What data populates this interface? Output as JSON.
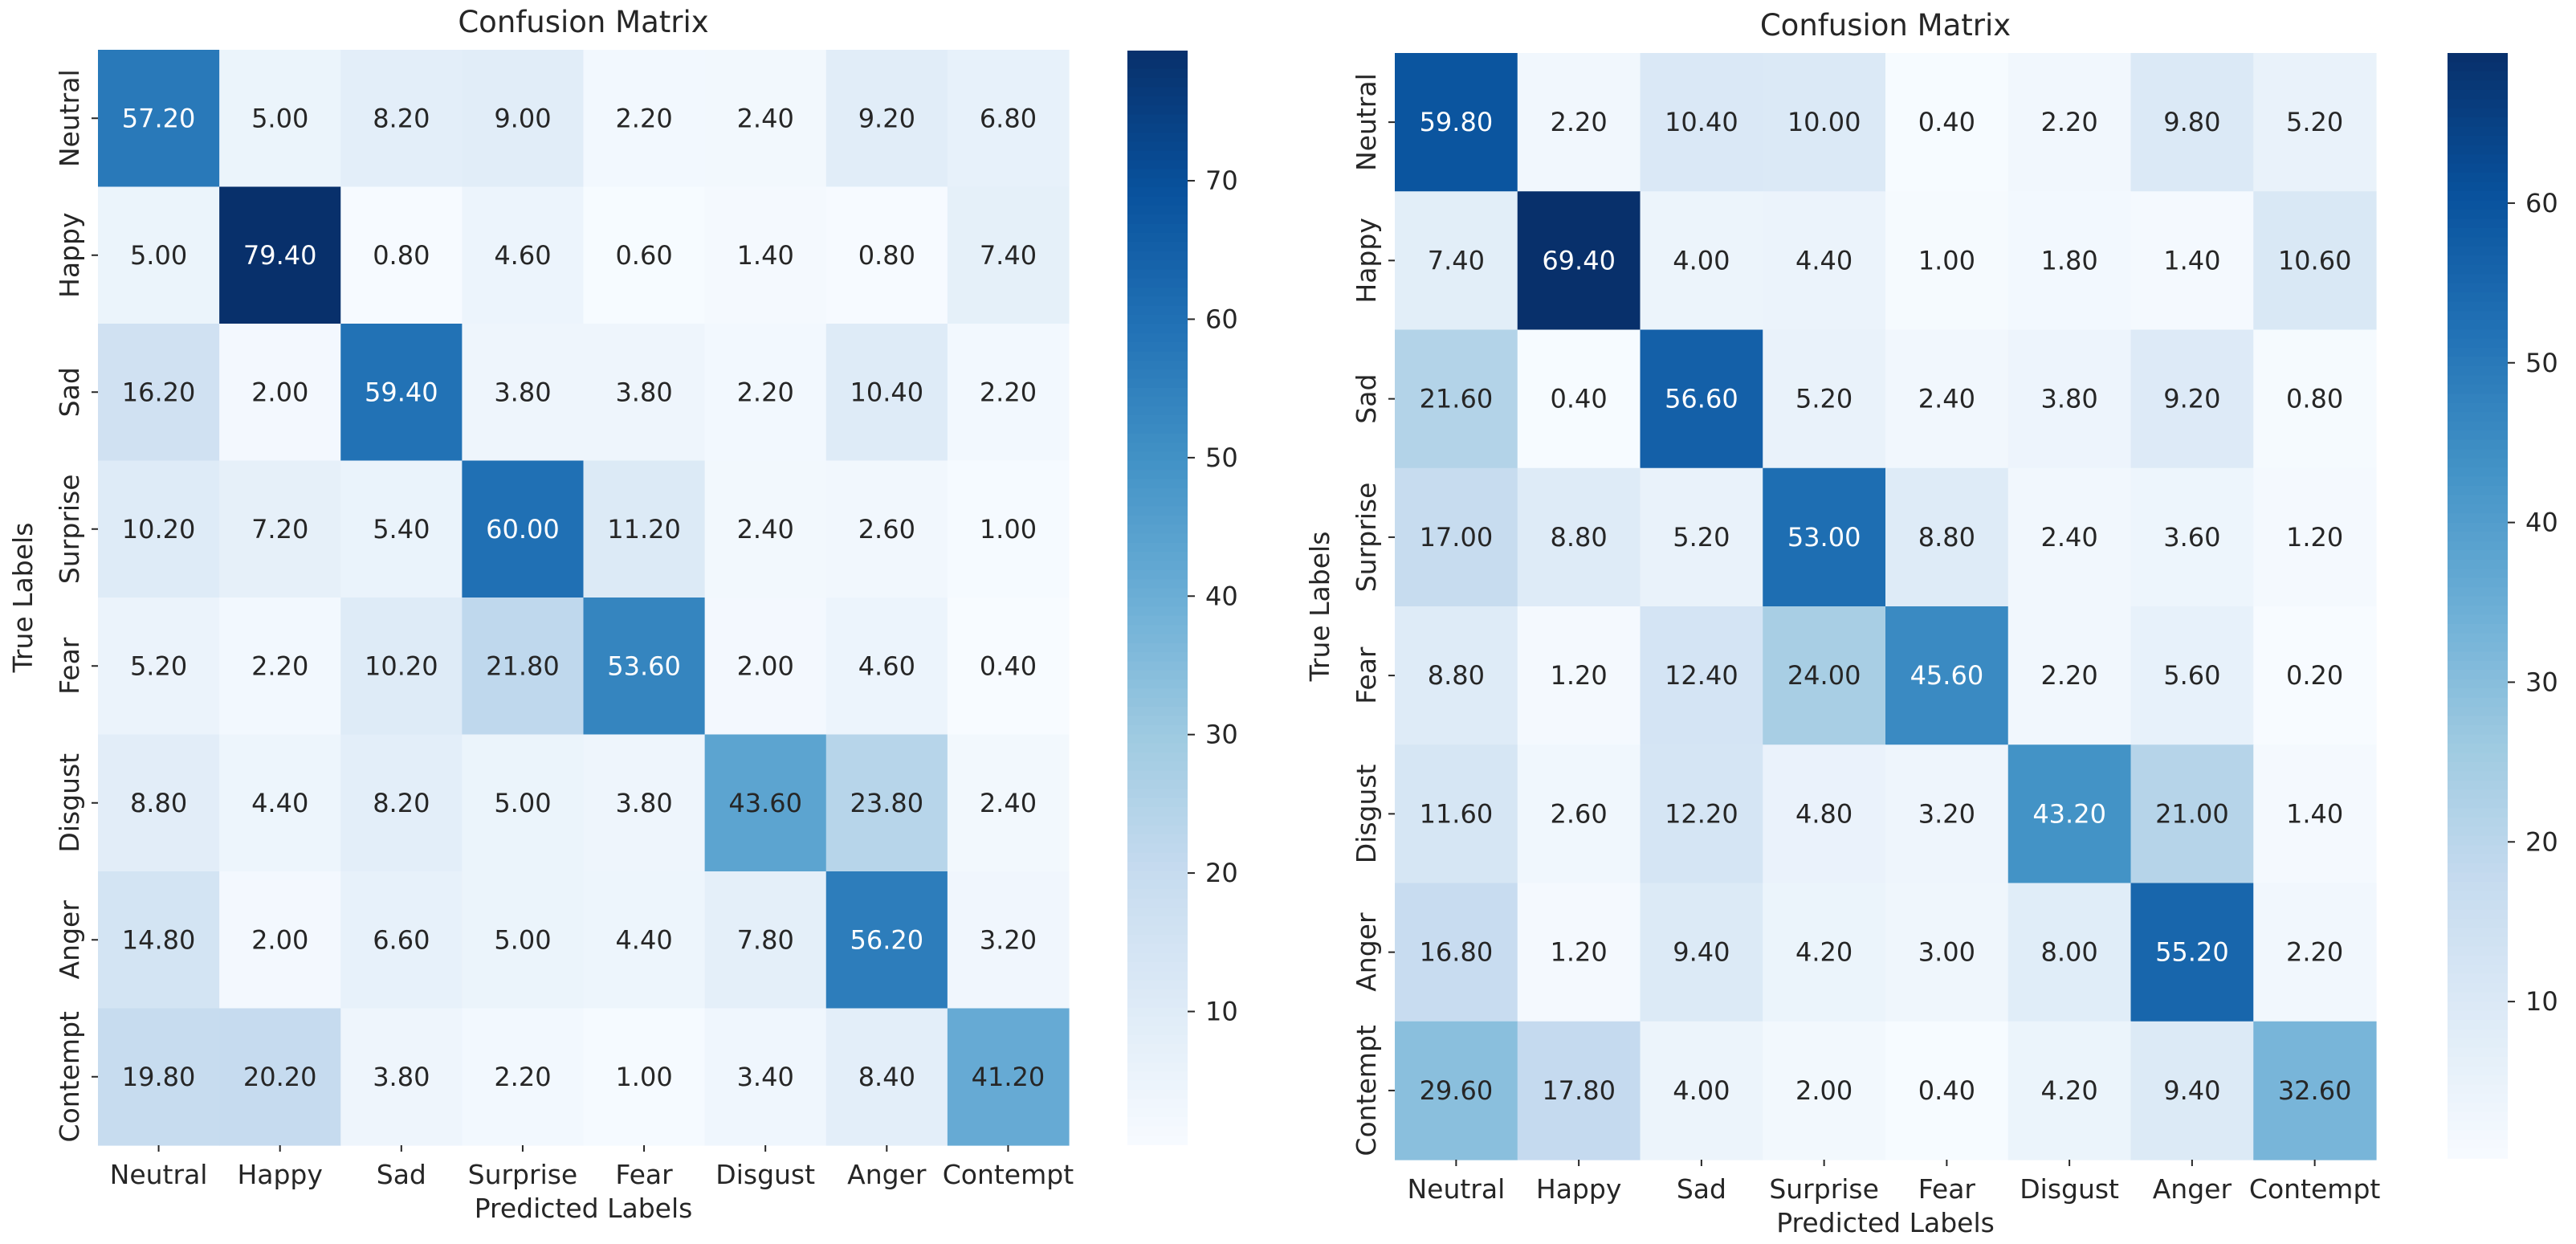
{
  "chart_data": [
    {
      "type": "heatmap",
      "title": "Confusion Matrix",
      "xlabel": "Predicted Labels",
      "ylabel": "True Labels",
      "x_categories": [
        "Neutral",
        "Happy",
        "Sad",
        "Surprise",
        "Fear",
        "Disgust",
        "Anger",
        "Contempt"
      ],
      "y_categories": [
        "Neutral",
        "Happy",
        "Sad",
        "Surprise",
        "Fear",
        "Disgust",
        "Anger",
        "Contempt"
      ],
      "values": [
        [
          "57.20",
          "5.00",
          "8.20",
          "9.00",
          "2.20",
          "2.40",
          "9.20",
          "6.80"
        ],
        [
          "5.00",
          "79.40",
          "0.80",
          "4.60",
          "0.60",
          "1.40",
          "0.80",
          "7.40"
        ],
        [
          "16.20",
          "2.00",
          "59.40",
          "3.80",
          "3.80",
          "2.20",
          "10.40",
          "2.20"
        ],
        [
          "10.20",
          "7.20",
          "5.40",
          "60.00",
          "11.20",
          "2.40",
          "2.60",
          "1.00"
        ],
        [
          "5.20",
          "2.20",
          "10.20",
          "21.80",
          "53.60",
          "2.00",
          "4.60",
          "0.40"
        ],
        [
          "8.80",
          "4.40",
          "8.20",
          "5.00",
          "3.80",
          "43.60",
          "23.80",
          "2.40"
        ],
        [
          "14.80",
          "2.00",
          "6.60",
          "5.00",
          "4.40",
          "7.80",
          "56.20",
          "3.20"
        ],
        [
          "19.80",
          "20.20",
          "3.80",
          "2.20",
          "1.00",
          "3.40",
          "8.40",
          "41.20"
        ]
      ],
      "colormap": "Blues",
      "color_range": [
        0.4,
        79.4
      ],
      "colorbar_ticks": [
        "10",
        "20",
        "30",
        "40",
        "50",
        "60",
        "70"
      ]
    },
    {
      "type": "heatmap",
      "title": "Confusion Matrix",
      "xlabel": "Predicted Labels",
      "ylabel": "True Labels",
      "x_categories": [
        "Neutral",
        "Happy",
        "Sad",
        "Surprise",
        "Fear",
        "Disgust",
        "Anger",
        "Contempt"
      ],
      "y_categories": [
        "Neutral",
        "Happy",
        "Sad",
        "Surprise",
        "Fear",
        "Disgust",
        "Anger",
        "Contempt"
      ],
      "values": [
        [
          "59.80",
          "2.20",
          "10.40",
          "10.00",
          "0.40",
          "2.20",
          "9.80",
          "5.20"
        ],
        [
          "7.40",
          "69.40",
          "4.00",
          "4.40",
          "1.00",
          "1.80",
          "1.40",
          "10.60"
        ],
        [
          "21.60",
          "0.40",
          "56.60",
          "5.20",
          "2.40",
          "3.80",
          "9.20",
          "0.80"
        ],
        [
          "17.00",
          "8.80",
          "5.20",
          "53.00",
          "8.80",
          "2.40",
          "3.60",
          "1.20"
        ],
        [
          "8.80",
          "1.20",
          "12.40",
          "24.00",
          "45.60",
          "2.20",
          "5.60",
          "0.20"
        ],
        [
          "11.60",
          "2.60",
          "12.20",
          "4.80",
          "3.20",
          "43.20",
          "21.00",
          "1.40"
        ],
        [
          "16.80",
          "1.20",
          "9.40",
          "4.20",
          "3.00",
          "8.00",
          "55.20",
          "2.20"
        ],
        [
          "29.60",
          "17.80",
          "4.00",
          "2.00",
          "0.40",
          "4.20",
          "9.40",
          "32.60"
        ]
      ],
      "colormap": "Blues",
      "color_range": [
        0.2,
        69.4
      ],
      "colorbar_ticks": [
        "10",
        "20",
        "30",
        "40",
        "50",
        "60"
      ]
    }
  ]
}
